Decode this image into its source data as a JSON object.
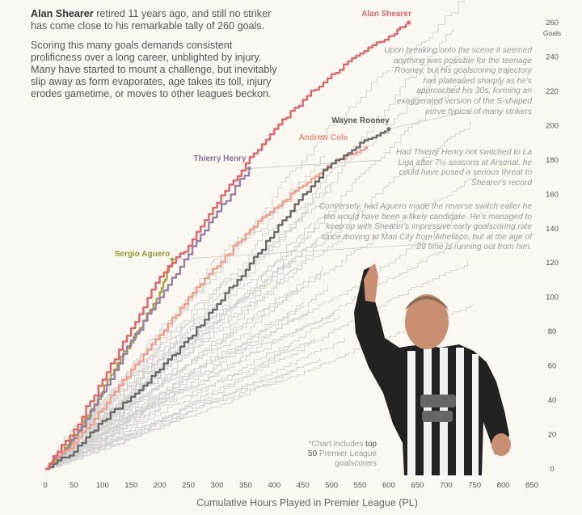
{
  "intro": {
    "lead_name": "Alan Shearer",
    "lead_rest": " retired 11 years ago, and still no striker has come close to his remarkable tally of 260 goals.",
    "body": "Scoring this many goals demands consistent prolificness over a long career, unblighted by injury. Many have started to mount a challenge, but inevitably slip away as form evaporates, age takes its toll, injury erodes gametime, or moves to other leagues beckon."
  },
  "annotations": {
    "shearer": "Upon breaking onto the scene it seemed anything was possible for the teenage Rooney, but his goalscoring trajectory has plateaued sharply as he's approached his 30s, forming an exaggerated version of the S-shaped curve typical of many strikers",
    "henry": "Had Thierry Henry not switched to La Liga after 7½ seasons at Arsenal, he could have posed a serious threat to Shearer's record",
    "aguero": "Conversely, had Aguero made the reverse switch ealier he too would have been a likely candidate. He's managed to keep up with Shearer's impressive early goalscoring rate since moving to Man City from Athelitico, but at the age of 29 time is running out from him."
  },
  "footnote": {
    "pre": "*Chart includes ",
    "bold": "top 50",
    "post": " Premier League goalscorers"
  },
  "colors": {
    "shearer": "#e0656b",
    "rooney": "#6b6b6b",
    "cole": "#f2a08e",
    "henry": "#9b7fa6",
    "aguero": "#a9a540",
    "others": "#d2d2d2"
  },
  "chart_data": {
    "type": "line",
    "xlabel": "Cumulative Hours Played in Premier League (PL)",
    "ylabel": "Goals",
    "xlim": [
      0,
      850
    ],
    "ylim": [
      0,
      260
    ],
    "x_ticks": [
      0,
      50,
      100,
      150,
      200,
      250,
      300,
      350,
      400,
      450,
      500,
      550,
      600,
      650,
      700,
      750,
      800,
      850
    ],
    "y_ticks": [
      0,
      20,
      40,
      60,
      80,
      100,
      120,
      140,
      160,
      180,
      200,
      220,
      240,
      260
    ],
    "series": [
      {
        "name": "Alan Shearer",
        "key": "shearer",
        "points": [
          [
            0,
            0
          ],
          [
            50,
            23
          ],
          [
            100,
            52
          ],
          [
            150,
            82
          ],
          [
            200,
            112
          ],
          [
            250,
            130
          ],
          [
            300,
            155
          ],
          [
            350,
            178
          ],
          [
            400,
            198
          ],
          [
            450,
            215
          ],
          [
            500,
            230
          ],
          [
            550,
            242
          ],
          [
            600,
            252
          ],
          [
            635,
            260
          ]
        ]
      },
      {
        "name": "Wayne Rooney",
        "key": "rooney",
        "points": [
          [
            0,
            0
          ],
          [
            50,
            10
          ],
          [
            100,
            28
          ],
          [
            150,
            42
          ],
          [
            200,
            58
          ],
          [
            250,
            76
          ],
          [
            300,
            96
          ],
          [
            350,
            116
          ],
          [
            400,
            138
          ],
          [
            450,
            160
          ],
          [
            500,
            178
          ],
          [
            550,
            190
          ],
          [
            600,
            198
          ]
        ]
      },
      {
        "name": "Andrew Cole",
        "key": "cole",
        "points": [
          [
            0,
            0
          ],
          [
            50,
            15
          ],
          [
            100,
            35
          ],
          [
            150,
            58
          ],
          [
            200,
            78
          ],
          [
            250,
            100
          ],
          [
            300,
            118
          ],
          [
            350,
            137
          ],
          [
            400,
            152
          ],
          [
            450,
            165
          ],
          [
            500,
            178
          ],
          [
            560,
            187
          ]
        ]
      },
      {
        "name": "Thierry Henry",
        "key": "henry",
        "points": [
          [
            0,
            0
          ],
          [
            50,
            18
          ],
          [
            100,
            45
          ],
          [
            150,
            75
          ],
          [
            200,
            100
          ],
          [
            250,
            125
          ],
          [
            300,
            150
          ],
          [
            356,
            175
          ]
        ]
      },
      {
        "name": "Sergio Aguero",
        "key": "aguero",
        "points": [
          [
            0,
            0
          ],
          [
            40,
            14
          ],
          [
            80,
            35
          ],
          [
            120,
            58
          ],
          [
            160,
            80
          ],
          [
            200,
            103
          ],
          [
            222,
            122
          ]
        ]
      }
    ],
    "other_count": 45
  }
}
